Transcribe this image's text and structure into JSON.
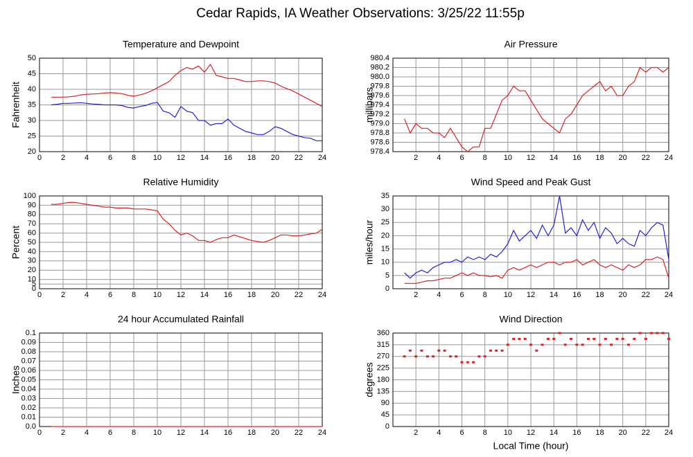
{
  "title": "Cedar Rapids, IA Weather Observations: 3/25/22 11:55p",
  "chart_data": [
    {
      "type": "line",
      "title": "Temperature and Dewpoint",
      "ylabel": "Fahrenheit",
      "x": [
        1,
        1.5,
        2,
        2.5,
        3,
        3.5,
        4,
        4.5,
        5,
        5.5,
        6,
        6.5,
        7,
        7.5,
        8,
        8.5,
        9,
        9.5,
        10,
        10.5,
        11,
        11.5,
        12,
        12.5,
        13,
        13.5,
        14,
        14.5,
        15,
        15.5,
        16,
        16.5,
        17,
        17.5,
        18,
        18.5,
        19,
        19.5,
        20,
        20.5,
        21,
        21.5,
        22,
        22.5,
        23,
        23.5,
        24
      ],
      "series": [
        {
          "color": "#e02020",
          "values": [
            37.5,
            37.5,
            37.5,
            37.6,
            37.8,
            38.2,
            38.4,
            38.5,
            38.6,
            38.8,
            38.9,
            38.8,
            38.6,
            38.1,
            37.8,
            38.2,
            38.7,
            39.5,
            40.5,
            41.5,
            42.5,
            44.5,
            46,
            47,
            46.5,
            47.5,
            45.5,
            48,
            44.5,
            44,
            43.5,
            43.5,
            43,
            42.5,
            42.5,
            42.7,
            42.7,
            42.5,
            42,
            41,
            40.2,
            39.5,
            38.5,
            37.5,
            36.5,
            35.5,
            34.5
          ]
        },
        {
          "color": "#2020e0",
          "values": [
            35,
            35.2,
            35.5,
            35.5,
            35.6,
            35.7,
            35.5,
            35.3,
            35.2,
            35,
            35,
            35,
            34.8,
            34.2,
            34,
            34.5,
            34.8,
            35.5,
            35.8,
            33,
            32.5,
            31,
            34.5,
            33,
            32.5,
            30,
            30,
            28.5,
            29,
            29,
            30.5,
            28.5,
            27.5,
            26.5,
            26,
            25.5,
            25.5,
            26.5,
            28,
            27.5,
            26.5,
            25.5,
            25,
            24.5,
            24.3,
            23.5,
            23.5
          ]
        }
      ],
      "xlim": [
        0,
        24
      ],
      "xticks": [
        0,
        2,
        4,
        6,
        8,
        10,
        12,
        14,
        16,
        18,
        20,
        22,
        24
      ],
      "ylim": [
        20,
        50
      ],
      "yticks": [
        20,
        25,
        30,
        35,
        40,
        45,
        50
      ],
      "grid": true
    },
    {
      "type": "line",
      "title": "Air Pressure",
      "ylabel": "millibars",
      "x": [
        1,
        1.5,
        2,
        2.5,
        3,
        3.5,
        4,
        4.5,
        5,
        5.5,
        6,
        6.5,
        7,
        7.5,
        8,
        8.5,
        9,
        9.5,
        10,
        10.5,
        11,
        11.5,
        12,
        12.5,
        13,
        13.5,
        14,
        14.5,
        15,
        15.5,
        16,
        16.5,
        17,
        17.5,
        18,
        18.5,
        19,
        19.5,
        20,
        20.5,
        21,
        21.5,
        22,
        22.5,
        23,
        23.5,
        24
      ],
      "series": [
        {
          "color": "#e02020",
          "values": [
            979.1,
            978.8,
            979.0,
            978.9,
            978.9,
            978.8,
            978.8,
            978.7,
            978.9,
            978.7,
            978.5,
            978.4,
            978.5,
            978.5,
            978.9,
            978.9,
            979.2,
            979.5,
            979.6,
            979.8,
            979.7,
            979.7,
            979.5,
            979.3,
            979.1,
            979.0,
            978.9,
            978.8,
            979.1,
            979.2,
            979.4,
            979.6,
            979.7,
            979.8,
            979.9,
            979.7,
            979.8,
            979.6,
            979.6,
            979.8,
            979.9,
            980.2,
            980.1,
            980.2,
            980.2,
            980.1,
            980.2
          ]
        }
      ],
      "xlim": [
        0,
        24
      ],
      "xticks": [
        2,
        4,
        6,
        8,
        10,
        12,
        14,
        16,
        18,
        20,
        22,
        24
      ],
      "ylim": [
        978.4,
        980.4
      ],
      "yticks": [
        978.4,
        978.6,
        978.8,
        {
          "value": 979,
          "label": "979.0"
        },
        979.2,
        979.4,
        979.6,
        979.8,
        {
          "value": 980,
          "label": "980.0"
        },
        980.2,
        980.4
      ],
      "grid": true
    },
    {
      "type": "line",
      "title": "Relative Humidity",
      "ylabel": "Percent",
      "x": [
        1,
        1.5,
        2,
        2.5,
        3,
        3.5,
        4,
        4.5,
        5,
        5.5,
        6,
        6.5,
        7,
        7.5,
        8,
        8.5,
        9,
        9.5,
        10,
        10.5,
        11,
        11.5,
        12,
        12.5,
        13,
        13.5,
        14,
        14.5,
        15,
        15.5,
        16,
        16.5,
        17,
        17.5,
        18,
        18.5,
        19,
        19.5,
        20,
        20.5,
        21,
        21.5,
        22,
        22.5,
        23,
        23.5,
        24
      ],
      "series": [
        {
          "color": "#e02020",
          "values": [
            91,
            91,
            92,
            93,
            93,
            92,
            91,
            90,
            89,
            88,
            88,
            87,
            87,
            87,
            86,
            86,
            86,
            85,
            84,
            75,
            70,
            63,
            58,
            60,
            57,
            52,
            52,
            50,
            53,
            55,
            55,
            58,
            56,
            54,
            52,
            51,
            50,
            52,
            55,
            58,
            58,
            57,
            57,
            58,
            59,
            60,
            64
          ]
        }
      ],
      "xlim": [
        0,
        24
      ],
      "xticks": [
        0,
        2,
        4,
        6,
        8,
        10,
        12,
        14,
        16,
        18,
        20,
        22,
        24
      ],
      "ylim": [
        0,
        100
      ],
      "yticks": [
        0,
        5,
        10,
        20,
        30,
        40,
        50,
        60,
        70,
        80,
        90,
        100
      ],
      "grid": true
    },
    {
      "type": "line",
      "title": "Wind Speed and Peak Gust",
      "ylabel": "miles/hour",
      "x": [
        1,
        1.5,
        2,
        2.5,
        3,
        3.5,
        4,
        4.5,
        5,
        5.5,
        6,
        6.5,
        7,
        7.5,
        8,
        8.5,
        9,
        9.5,
        10,
        10.5,
        11,
        11.5,
        12,
        12.5,
        13,
        13.5,
        14,
        14.5,
        15,
        15.5,
        16,
        16.5,
        17,
        17.5,
        18,
        18.5,
        19,
        19.5,
        20,
        20.5,
        21,
        21.5,
        22,
        22.5,
        23,
        23.5,
        24
      ],
      "series": [
        {
          "color": "#2020e0",
          "values": [
            6,
            4,
            6,
            7,
            6,
            8,
            9,
            10,
            10,
            11,
            10,
            12,
            11,
            12,
            11,
            13,
            12,
            14,
            17,
            22,
            18,
            20,
            22,
            19,
            24,
            20,
            24,
            35,
            21,
            23,
            20,
            26,
            22,
            25,
            19,
            23,
            21,
            17,
            19,
            17,
            16,
            22,
            20,
            23,
            25,
            24,
            11
          ]
        },
        {
          "color": "#e02020",
          "values": [
            2,
            2,
            2,
            2.5,
            3,
            3,
            3.5,
            4,
            4,
            5,
            6,
            5,
            6,
            5,
            5,
            4.5,
            5,
            4,
            7,
            8,
            7,
            8,
            9,
            8,
            9,
            10,
            10,
            9,
            10,
            10,
            11,
            9,
            10,
            11,
            9,
            8,
            9,
            8,
            7,
            9,
            8,
            9,
            11,
            11,
            12,
            11,
            4
          ]
        }
      ],
      "xlim": [
        0,
        24
      ],
      "xticks": [
        2,
        4,
        6,
        8,
        10,
        12,
        14,
        16,
        18,
        20,
        22,
        24
      ],
      "ylim": [
        0,
        35
      ],
      "yticks": [
        0,
        5,
        10,
        15,
        20,
        25,
        30,
        35
      ],
      "grid": true
    },
    {
      "type": "line",
      "title": "24 hour Accumulated Rainfall",
      "ylabel": "Inches",
      "x": [
        1,
        24
      ],
      "series": [
        {
          "color": "#e02020",
          "values": [
            0,
            0
          ]
        }
      ],
      "xlim": [
        0,
        24
      ],
      "xticks": [
        0,
        2,
        4,
        6,
        8,
        10,
        12,
        14,
        16,
        18,
        20,
        22,
        24
      ],
      "ylim": [
        0,
        0.1
      ],
      "yticks": [
        {
          "value": 0,
          "label": "0.0"
        },
        0.01,
        0.02,
        0.03,
        0.04,
        0.05,
        0.06,
        0.07,
        0.08,
        0.09,
        0.1
      ],
      "grid": true
    },
    {
      "type": "scatter",
      "title": "Wind Direction",
      "ylabel": "degrees",
      "xlabel": "Local Time (hour)",
      "x": [
        1,
        1.5,
        2,
        2.5,
        3,
        3.5,
        4,
        4.5,
        5,
        5.5,
        6,
        6.5,
        7,
        7.5,
        8,
        8.5,
        9,
        9.5,
        10,
        10.5,
        11,
        11.5,
        12,
        12.5,
        13,
        13.5,
        14,
        14.5,
        15,
        15.5,
        16,
        16.5,
        17,
        17.5,
        18,
        18.5,
        19,
        19.5,
        20,
        20.5,
        21,
        21.5,
        22,
        22.5,
        23,
        23.5,
        24
      ],
      "series": [
        {
          "color": "#e02020",
          "values": [
            270,
            292.5,
            270,
            292.5,
            270,
            270,
            292.5,
            292.5,
            270,
            270,
            247.5,
            247.5,
            247.5,
            270,
            270,
            292.5,
            292.5,
            292.5,
            315,
            337.5,
            337.5,
            337.5,
            315,
            292.5,
            315,
            337.5,
            337.5,
            360,
            315,
            337.5,
            315,
            315,
            337.5,
            337.5,
            315,
            337.5,
            315,
            337.5,
            337.5,
            315,
            337.5,
            360,
            337.5,
            360,
            360,
            360,
            337.5
          ]
        }
      ],
      "xlim": [
        0,
        24
      ],
      "xticks": [
        2,
        4,
        6,
        8,
        10,
        12,
        14,
        16,
        18,
        20,
        22,
        24
      ],
      "ylim": [
        0,
        360
      ],
      "yticks": [
        0,
        45,
        90,
        135,
        180,
        225,
        270,
        315,
        360
      ],
      "grid": true
    }
  ]
}
